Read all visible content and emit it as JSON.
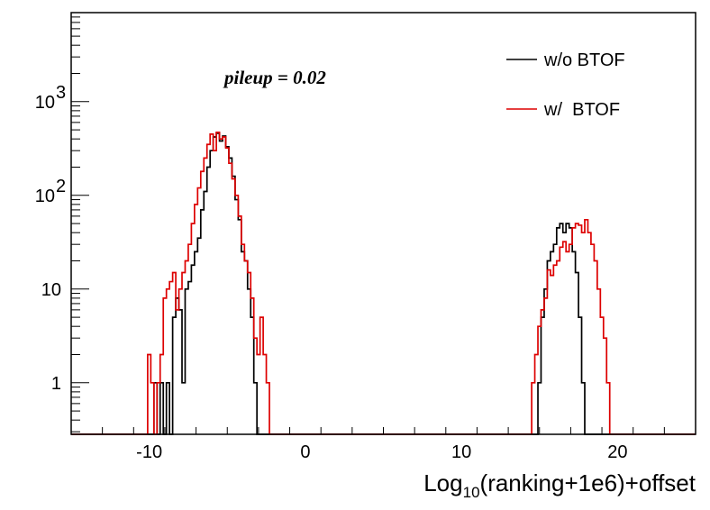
{
  "chart_data": {
    "type": "line",
    "title": "",
    "xlabel": {
      "main": "Log",
      "sub": "10",
      "rest": "(ranking+1e6)+offset"
    },
    "ylabel": "",
    "xlim": [
      -15,
      25
    ],
    "ylim_log10": [
      -0.55,
      3.95
    ],
    "y_log_scale": true,
    "grid": false,
    "legend_position": "top-right",
    "annotation": "pileup = 0.02",
    "x_ticks": [
      {
        "value": -10,
        "label": "-10"
      },
      {
        "value": 0,
        "label": "0"
      },
      {
        "value": 10,
        "label": "10"
      },
      {
        "value": 20,
        "label": "20"
      }
    ],
    "y_ticks": [
      {
        "value": 1,
        "label": "1",
        "exp": ""
      },
      {
        "value": 10,
        "label": "10",
        "exp": ""
      },
      {
        "value": 100,
        "label": "10",
        "exp": "2"
      },
      {
        "value": 1000,
        "label": "10",
        "exp": "3"
      }
    ],
    "series": [
      {
        "name": "w/o BTOF",
        "color": "#000000",
        "x": [
          -9.8,
          -9.6,
          -9.4,
          -9.2,
          -9.0,
          -8.8,
          -8.6,
          -8.4,
          -8.2,
          -8.0,
          -7.8,
          -7.6,
          -7.4,
          -7.2,
          -7.0,
          -6.8,
          -6.6,
          -6.4,
          -6.2,
          -6.0,
          -5.8,
          -5.6,
          -5.4,
          -5.2,
          -5.0,
          -4.8,
          -4.6,
          -4.4,
          -4.2,
          -4.0,
          -3.8,
          -3.6,
          -3.4,
          -3.2,
          -3.0,
          -2.8,
          -2.6,
          -2.4,
          -2.2,
          -2.0,
          -1.8,
          -1.6,
          -1.4,
          14.6,
          14.8,
          15.0,
          15.2,
          15.4,
          15.6,
          15.8,
          16.0,
          16.2,
          16.4,
          16.6,
          16.8,
          17.0,
          17.2,
          17.4,
          17.6,
          17.8,
          18.0,
          18.2,
          18.4,
          18.6,
          18.8,
          19.0,
          19.2,
          19.4,
          19.6,
          19.8,
          20.0
        ],
        "values": [
          0,
          1,
          0,
          1,
          0,
          1,
          0,
          5,
          8,
          6,
          1,
          10,
          12,
          18,
          25,
          35,
          70,
          110,
          200,
          300,
          420,
          460,
          380,
          430,
          330,
          250,
          160,
          90,
          55,
          25,
          20,
          10,
          5,
          1,
          0,
          0,
          0,
          0,
          0,
          0,
          0,
          0,
          0,
          0,
          0,
          1,
          5,
          10,
          20,
          25,
          30,
          45,
          50,
          40,
          50,
          45,
          25,
          15,
          5,
          1,
          0,
          0,
          0,
          0,
          0,
          0,
          0,
          0,
          0,
          0,
          0
        ]
      },
      {
        "name": "w/  BTOF",
        "color": "#dd0000",
        "x": [
          -10.2,
          -10.0,
          -9.8,
          -9.6,
          -9.4,
          -9.2,
          -9.0,
          -8.8,
          -8.6,
          -8.4,
          -8.2,
          -8.0,
          -7.8,
          -7.6,
          -7.4,
          -7.2,
          -7.0,
          -6.8,
          -6.6,
          -6.4,
          -6.2,
          -6.0,
          -5.8,
          -5.6,
          -5.4,
          -5.2,
          -5.0,
          -4.8,
          -4.6,
          -4.4,
          -4.2,
          -4.0,
          -3.8,
          -3.6,
          -3.4,
          -3.2,
          -3.0,
          -2.8,
          -2.6,
          -2.4,
          -2.2,
          -2.0,
          -1.8,
          -1.6,
          -1.4,
          14.2,
          14.4,
          14.6,
          14.8,
          15.0,
          15.2,
          15.4,
          15.6,
          15.8,
          16.0,
          16.2,
          16.4,
          16.6,
          16.8,
          17.0,
          17.2,
          17.4,
          17.6,
          17.8,
          18.0,
          18.2,
          18.4,
          18.6,
          18.8,
          19.0,
          19.2,
          19.4,
          19.6,
          19.8,
          20.0,
          20.2
        ],
        "values": [
          0,
          2,
          1,
          0,
          1,
          2,
          8,
          10,
          12,
          15,
          6,
          10,
          15,
          20,
          30,
          50,
          80,
          120,
          180,
          250,
          350,
          450,
          300,
          470,
          400,
          420,
          320,
          220,
          150,
          100,
          60,
          30,
          20,
          15,
          8,
          3,
          2,
          5,
          2,
          1,
          0,
          0,
          0,
          0,
          0,
          0,
          0,
          1,
          2,
          4,
          6,
          8,
          16,
          14,
          18,
          20,
          28,
          32,
          25,
          30,
          45,
          50,
          48,
          40,
          55,
          40,
          30,
          20,
          10,
          5,
          3,
          1,
          0,
          0,
          0,
          0
        ]
      }
    ]
  }
}
